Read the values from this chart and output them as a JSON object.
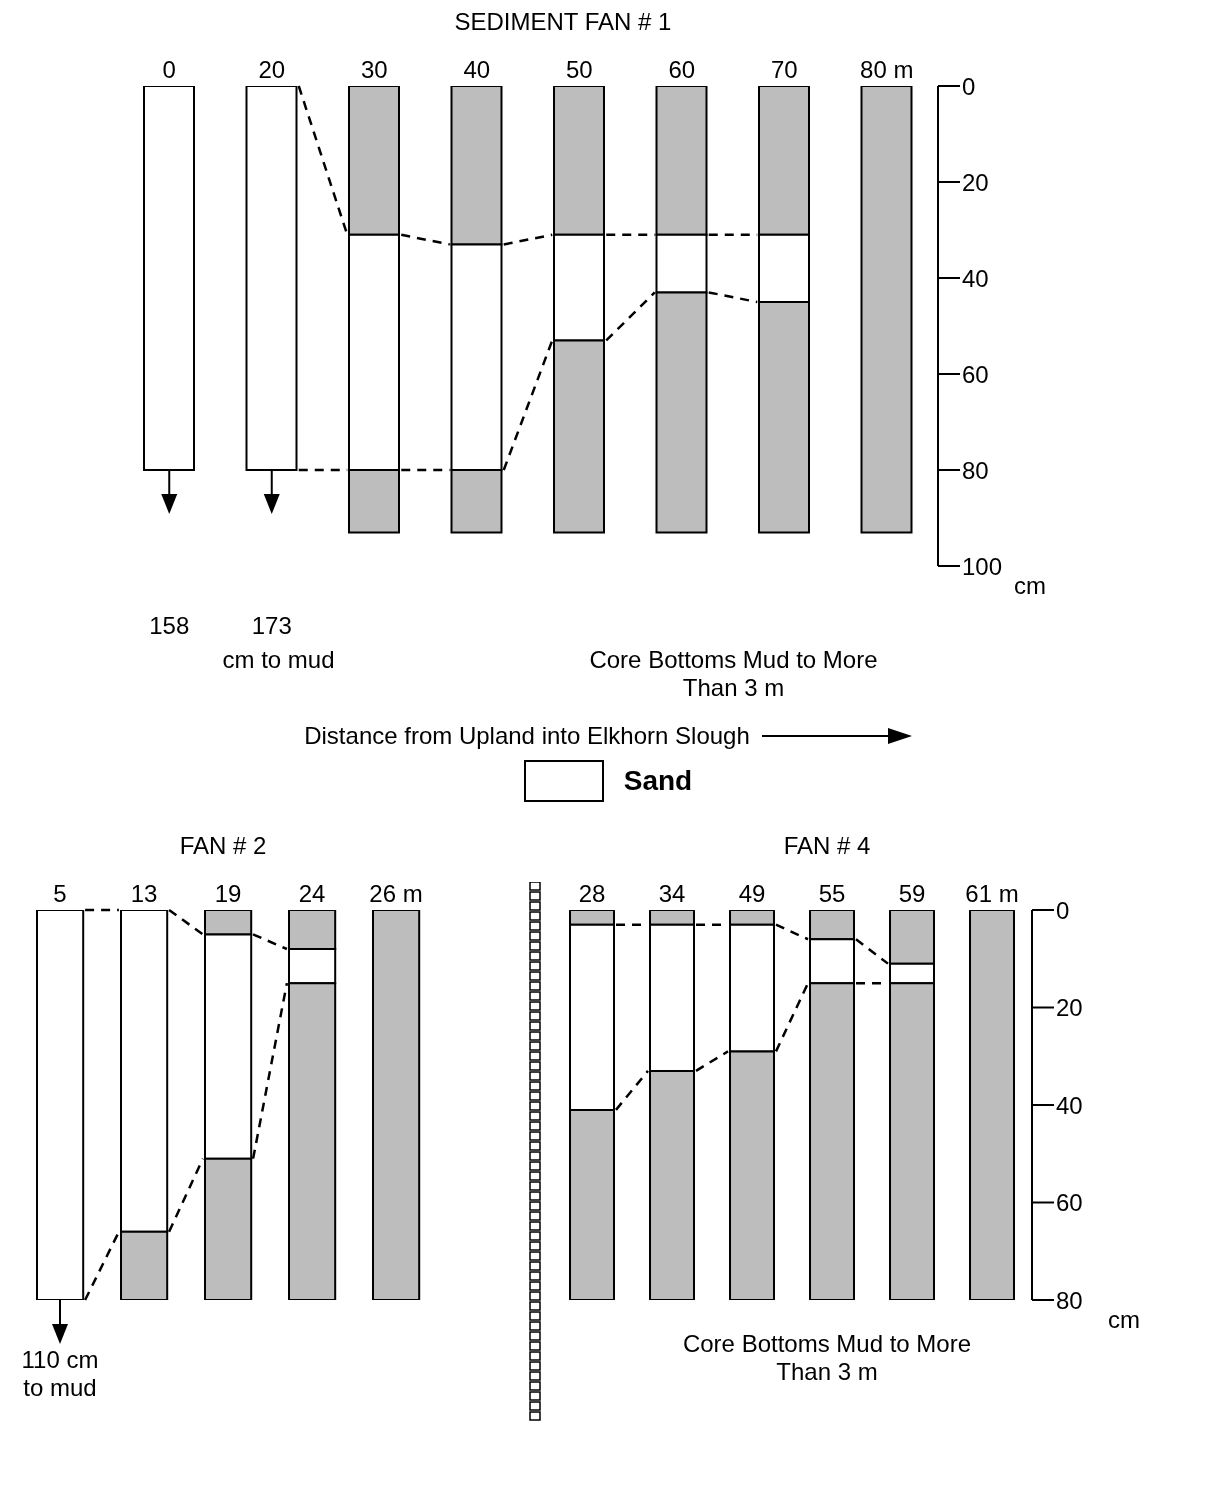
{
  "chart_data": [
    {
      "type": "bar",
      "title": "SEDIMENT FAN # 1",
      "xlabel": "Distance from Upland into Elkhorn Slough",
      "ylabel": "cm",
      "categories": [
        "0",
        "20",
        "30",
        "40",
        "50",
        "60",
        "70",
        "80 m"
      ],
      "stacked": true,
      "legend": "bottom",
      "ylim": [
        100,
        0
      ],
      "yticks": [
        0,
        20,
        40,
        60,
        80,
        100
      ],
      "series": [
        {
          "color": "#bdbdbd",
          "values": [
            0,
            0,
            31,
            33,
            31,
            31,
            31,
            93
          ]
        },
        {
          "name": "Sand",
          "color": "#ffffff",
          "values": [
            80,
            80,
            49,
            47,
            22,
            12,
            14,
            0
          ]
        },
        {
          "color": "#bdbdbd",
          "values": [
            0,
            0,
            13,
            13,
            40,
            50,
            48,
            0
          ]
        }
      ],
      "annotations": [
        "158",
        "173",
        "cm  to mud",
        "Core Bottoms Mud to More Than  3 m"
      ]
    },
    {
      "type": "bar",
      "title": "FAN # 2",
      "categories": [
        "5",
        "13",
        "19",
        "24",
        "26 m"
      ],
      "stacked": true,
      "tick_labels": "x",
      "ylim": [
        80,
        0
      ],
      "series": [
        {
          "color": "#bdbdbd",
          "values": [
            0,
            0,
            5,
            8,
            80
          ]
        },
        {
          "color": "#ffffff",
          "values": [
            80,
            66,
            46,
            7,
            0
          ]
        },
        {
          "color": "#bdbdbd",
          "values": [
            0,
            14,
            29,
            65,
            0
          ]
        }
      ],
      "annotations": [
        "110 cm to mud"
      ]
    },
    {
      "type": "bar",
      "title": "FAN # 4",
      "ylabel": "cm",
      "categories": [
        "28",
        "34",
        "49",
        "55",
        "59",
        "61 m"
      ],
      "stacked": true,
      "ylim": [
        80,
        0
      ],
      "yticks": [
        0,
        20,
        40,
        60,
        80
      ],
      "series": [
        {
          "color": "#bdbdbd",
          "values": [
            3,
            3,
            3,
            6,
            11,
            80
          ]
        },
        {
          "color": "#ffffff",
          "values": [
            38,
            30,
            26,
            9,
            4,
            0
          ]
        },
        {
          "color": "#bdbdbd",
          "values": [
            39,
            47,
            51,
            65,
            65,
            0
          ]
        }
      ],
      "annotations": [
        "Core Bottoms Mud to More Than 3 m"
      ]
    }
  ]
}
